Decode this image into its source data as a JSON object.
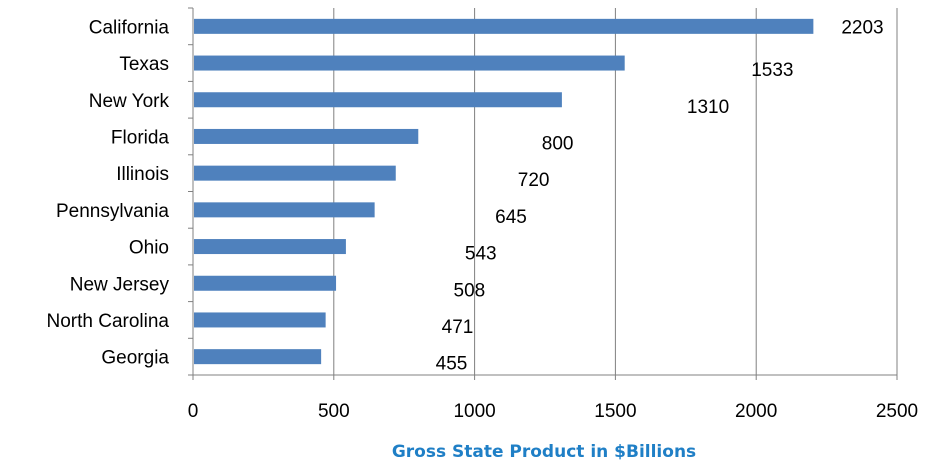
{
  "chart_data": {
    "type": "bar",
    "orientation": "horizontal",
    "categories": [
      "California",
      "Texas",
      "New York",
      "Florida",
      "Illinois",
      "Pennsylvania",
      "Ohio",
      "New Jersey",
      "North Carolina",
      "Georgia"
    ],
    "values": [
      2203,
      1533,
      1310,
      800,
      720,
      645,
      543,
      508,
      471,
      455
    ],
    "data_labels": [
      "2203",
      "1533",
      "1310",
      "800",
      "720",
      "645",
      "543",
      "508",
      "471",
      "455"
    ],
    "title": "",
    "xlabel": "Gross State Product in $Billions",
    "ylabel": "",
    "xlim": [
      0,
      2500
    ],
    "x_ticks": [
      0,
      500,
      1000,
      1500,
      2000,
      2500
    ],
    "x_tick_labels": [
      "0",
      "500",
      "1000",
      "1500",
      "2000",
      "2500"
    ],
    "grid": "vertical",
    "legend": "none",
    "colors": {
      "bar": "#4f81bd",
      "grid": "#808080",
      "axis": "#808080",
      "axis_title": "#1f7fc6"
    }
  }
}
